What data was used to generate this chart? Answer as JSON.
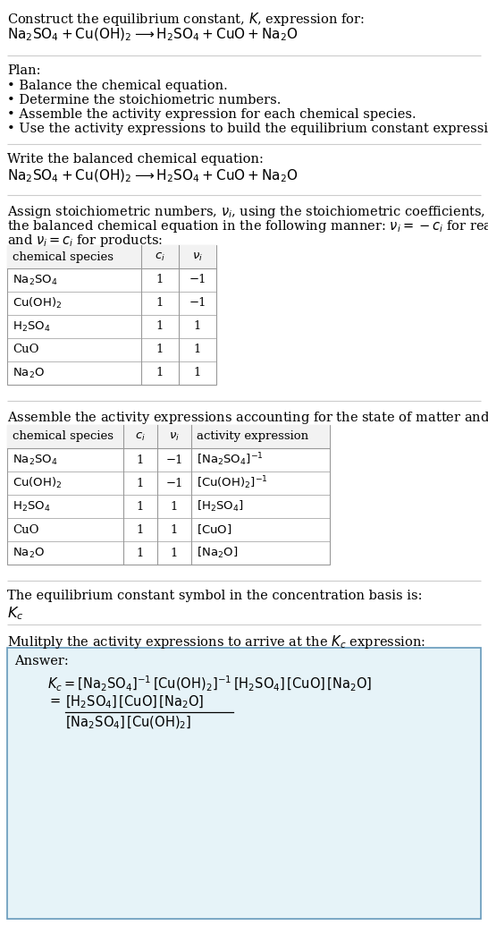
{
  "bg_color": "#ffffff",
  "table_border_color": "#999999",
  "answer_bg_color": "#e6f3f8",
  "answer_border_color": "#6699bb",
  "text_color": "#000000",
  "line_color": "#cccccc",
  "fs": 10.5,
  "fs_small": 9.5,
  "sec1_line1": "Construct the equilibrium constant, $K$, expression for:",
  "sec1_line2": "$\\mathrm{Na_2SO_4 + Cu(OH)_2 \\longrightarrow H_2SO_4 + CuO + Na_2O}$",
  "plan_header": "Plan:",
  "plan_bullets": [
    "• Balance the chemical equation.",
    "• Determine the stoichiometric numbers.",
    "• Assemble the activity expression for each chemical species.",
    "• Use the activity expressions to build the equilibrium constant expression."
  ],
  "balanced_header": "Write the balanced chemical equation:",
  "balanced_eq": "$\\mathrm{Na_2SO_4 + Cu(OH)_2 \\longrightarrow H_2SO_4 + CuO + Na_2O}$",
  "stoich_intro1": "Assign stoichiometric numbers, $\\nu_i$, using the stoichiometric coefficients, $c_i$, from",
  "stoich_intro2": "the balanced chemical equation in the following manner: $\\nu_i = -c_i$ for reactants",
  "stoich_intro3": "and $\\nu_i = c_i$ for products:",
  "table1_col_headers": [
    "chemical species",
    "$c_i$",
    "$\\nu_i$"
  ],
  "table1_rows_col0": [
    "$\\mathrm{Na_2SO_4}$",
    "$\\mathrm{Cu(OH)_2}$",
    "$\\mathrm{H_2SO_4}$",
    "CuO",
    "$\\mathrm{Na_2O}$"
  ],
  "table1_rows_col1": [
    "1",
    "1",
    "1",
    "1",
    "1"
  ],
  "table1_rows_col2": [
    "−1",
    "−1",
    "1",
    "1",
    "1"
  ],
  "activity_intro": "Assemble the activity expressions accounting for the state of matter and $\\nu_i$:",
  "table2_col_headers": [
    "chemical species",
    "$c_i$",
    "$\\nu_i$",
    "activity expression"
  ],
  "table2_rows_col0": [
    "$\\mathrm{Na_2SO_4}$",
    "$\\mathrm{Cu(OH)_2}$",
    "$\\mathrm{H_2SO_4}$",
    "CuO",
    "$\\mathrm{Na_2O}$"
  ],
  "table2_rows_col1": [
    "1",
    "1",
    "1",
    "1",
    "1"
  ],
  "table2_rows_col2": [
    "−1",
    "−1",
    "1",
    "1",
    "1"
  ],
  "table2_rows_col3": [
    "$\\mathrm{[Na_2SO_4]^{-1}}$",
    "$\\mathrm{[Cu(OH)_2]^{-1}}$",
    "$\\mathrm{[H_2SO_4]}$",
    "$\\mathrm{[CuO]}$",
    "$\\mathrm{[Na_2O]}$"
  ],
  "kc_intro": "The equilibrium constant symbol in the concentration basis is:",
  "kc_symbol": "$K_c$",
  "multiply_intro": "Mulitply the activity expressions to arrive at the $K_c$ expression:",
  "answer_label": "Answer:",
  "answer_line1": "$K_c = \\mathrm{[Na_2SO_4]^{-1}\\,[Cu(OH)_2]^{-1}\\,[H_2SO_4]\\,[CuO]\\,[Na_2O]}$",
  "answer_eq_lhs": "$= $",
  "answer_num": "$\\mathrm{[H_2SO_4]\\,[CuO]\\,[Na_2O]}$",
  "answer_den": "$\\mathrm{[Na_2SO_4]\\,[Cu(OH)_2]}$"
}
